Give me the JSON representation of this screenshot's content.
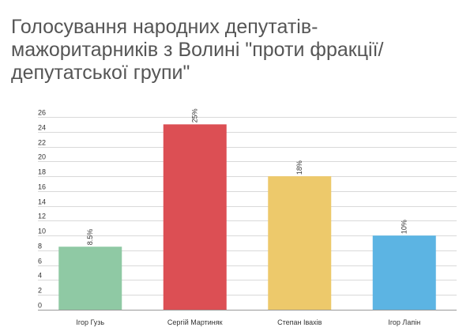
{
  "title_lines": [
    "Голосування народних депутатів-",
    "мажоритарників з Волині \"проти фракції/",
    "депутатської групи\""
  ],
  "chart_data": {
    "type": "bar",
    "title": "Голосування народних депутатів-мажоритарників з Волині \"проти фракції/депутатської групи\"",
    "categories": [
      "Ігор Гузь",
      "Сергій Мартиняк",
      "Степан Івахів",
      "Ігор Лапін"
    ],
    "values": [
      8.5,
      25,
      18,
      10
    ],
    "data_labels": [
      "8.5%",
      "25%",
      "18%",
      "10%"
    ],
    "colors": [
      "#8fc9a4",
      "#dc4f54",
      "#edc96b",
      "#5cb4e3"
    ],
    "yticks": [
      0,
      2,
      4,
      6,
      8,
      10,
      12,
      14,
      16,
      18,
      20,
      22,
      24,
      26
    ],
    "ylim": [
      0,
      26
    ],
    "grid": true,
    "xlabel": "",
    "ylabel": ""
  }
}
